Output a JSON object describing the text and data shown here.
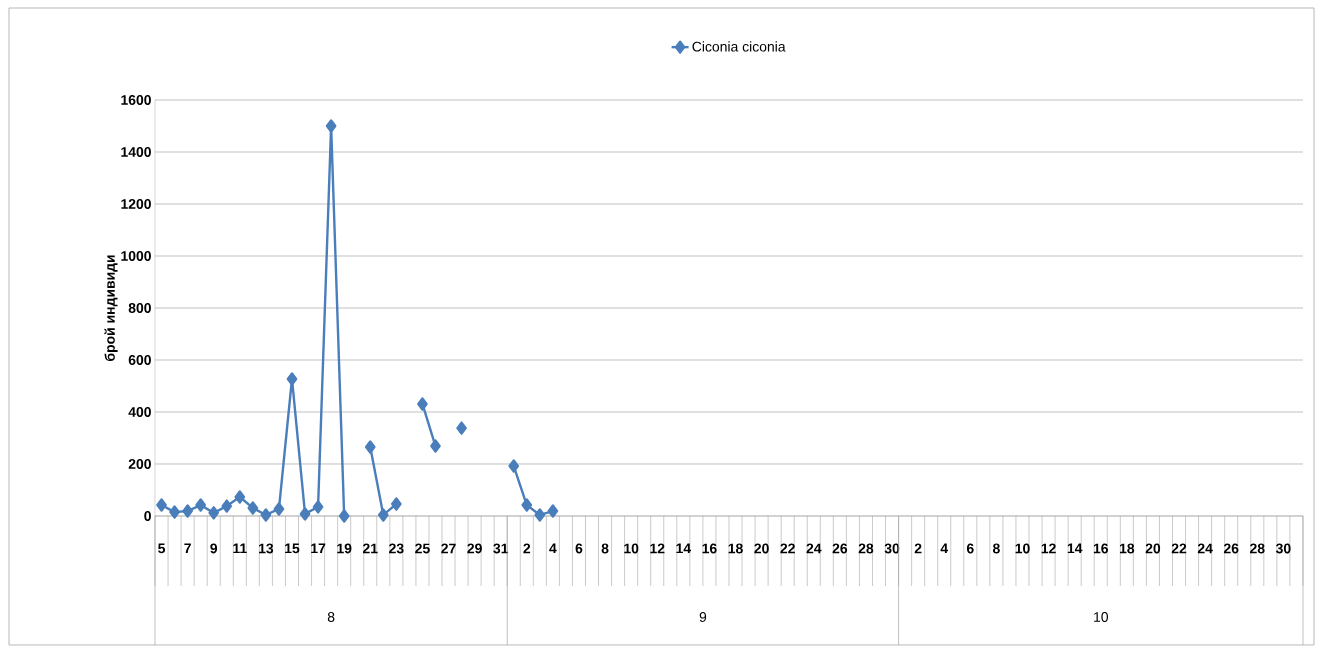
{
  "chart_data": {
    "type": "line",
    "ylabel": "брой индивиди",
    "categories": [
      "5",
      null,
      "7",
      null,
      "9",
      null,
      "11",
      null,
      "13",
      null,
      "15",
      null,
      "17",
      null,
      "19",
      null,
      "21",
      null,
      "23",
      null,
      "25",
      null,
      "27",
      null,
      "29",
      null,
      "31",
      null,
      "2",
      null,
      "4",
      null,
      "6",
      null,
      "8",
      null,
      "10",
      null,
      "12",
      null,
      "14",
      null,
      "16",
      null,
      "18",
      null,
      "20",
      null,
      "22",
      null,
      "24",
      null,
      "26",
      null,
      "28",
      null,
      "30",
      null,
      "2",
      null,
      "4",
      null,
      "6",
      null,
      "8",
      null,
      "10",
      null,
      "12",
      null,
      "14",
      null,
      "16",
      null,
      "18",
      null,
      "20",
      null,
      "22",
      null,
      "24",
      null,
      "26",
      null,
      "28",
      null,
      "30",
      null
    ],
    "series": [
      {
        "name": "Ciconia ciconia",
        "color": "#4a7ebb",
        "values": [
          42,
          15,
          19,
          42,
          12,
          38,
          73,
          31,
          4,
          27,
          527,
          8,
          35,
          1500,
          0,
          null,
          265,
          4,
          46,
          null,
          431,
          269,
          null,
          338,
          null,
          null,
          null,
          192,
          42,
          4,
          19,
          null,
          null,
          null,
          null,
          null,
          null,
          null,
          null,
          null,
          null,
          null,
          null,
          null,
          null,
          null,
          null,
          null,
          null,
          null,
          null,
          null,
          null,
          null,
          null,
          null,
          null,
          null,
          null,
          null,
          null,
          null,
          null,
          null,
          null,
          null,
          null,
          null,
          null,
          null,
          null,
          null,
          null,
          null,
          null,
          null,
          null,
          null,
          null,
          null,
          null,
          null,
          null,
          null,
          null,
          null,
          null,
          null
        ]
      }
    ],
    "ylim": [
      0,
      1600
    ],
    "yticks": [
      0,
      200,
      400,
      600,
      800,
      1000,
      1200,
      1400,
      1600
    ],
    "grid": "y",
    "legend": "top",
    "marker": "diamond",
    "line_style": "solid",
    "annotations": [
      "8",
      "9",
      "10"
    ]
  }
}
